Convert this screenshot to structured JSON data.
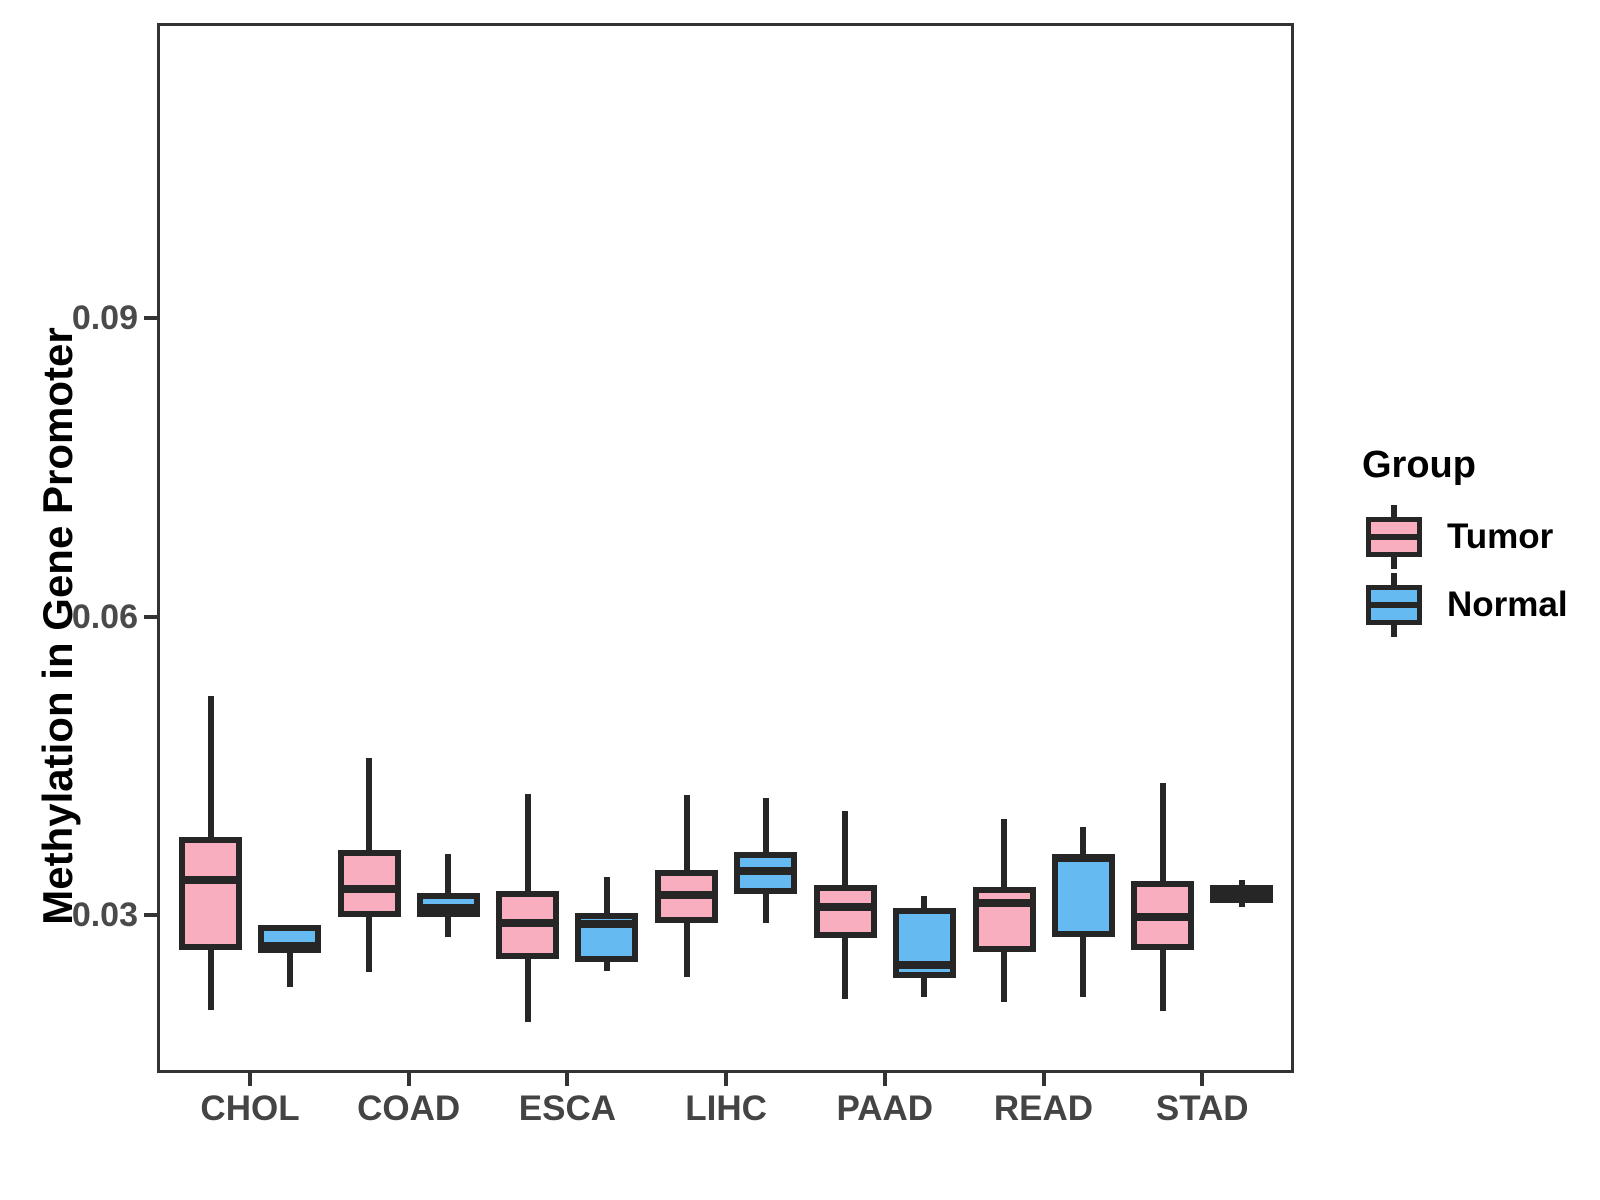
{
  "chart_data": {
    "type": "boxplot",
    "title": "",
    "xlabel": "",
    "ylabel": "Methylation in Gene Promoter",
    "categories": [
      "CHOL",
      "COAD",
      "ESCA",
      "LIHC",
      "PAAD",
      "READ",
      "STAD"
    ],
    "yticks": [
      0.03,
      0.06,
      0.09
    ],
    "ytick_labels": [
      "0.03",
      "0.06",
      "0.09"
    ],
    "ylim": [
      0.014,
      0.119
    ],
    "grid": "off",
    "legend": {
      "title": "Group",
      "position": "right",
      "entries": [
        {
          "label": "Tumor",
          "color": "#F9AEC0"
        },
        {
          "label": "Normal",
          "color": "#66BAF2"
        }
      ]
    },
    "colors": {
      "tumor_fill": "#F9AEC0",
      "normal_fill": "#66BAF2",
      "stroke": "#262626",
      "panel_border": "#333333",
      "tick_label": "#4a4a4a",
      "axis_title": "#000000"
    },
    "series": [
      {
        "name": "Tumor",
        "color": "#F9AEC0",
        "boxes": [
          {
            "category": "CHOL",
            "whisker_low": 0.0205,
            "q1": 0.0265,
            "median": 0.0335,
            "q3": 0.0378,
            "whisker_high": 0.052
          },
          {
            "category": "COAD",
            "whisker_low": 0.0243,
            "q1": 0.0298,
            "median": 0.0326,
            "q3": 0.0365,
            "whisker_high": 0.0458
          },
          {
            "category": "ESCA",
            "whisker_low": 0.0192,
            "q1": 0.0256,
            "median": 0.0292,
            "q3": 0.0324,
            "whisker_high": 0.0422
          },
          {
            "category": "LIHC",
            "whisker_low": 0.0238,
            "q1": 0.0292,
            "median": 0.032,
            "q3": 0.0345,
            "whisker_high": 0.0421
          },
          {
            "category": "PAAD",
            "whisker_low": 0.0216,
            "q1": 0.0277,
            "median": 0.0308,
            "q3": 0.033,
            "whisker_high": 0.0405
          },
          {
            "category": "READ",
            "whisker_low": 0.0213,
            "q1": 0.0263,
            "median": 0.0312,
            "q3": 0.0328,
            "whisker_high": 0.0396
          },
          {
            "category": "STAD",
            "whisker_low": 0.0204,
            "q1": 0.0265,
            "median": 0.0298,
            "q3": 0.0334,
            "whisker_high": 0.0433
          }
        ]
      },
      {
        "name": "Normal",
        "color": "#66BAF2",
        "boxes": [
          {
            "category": "CHOL",
            "whisker_low": 0.0228,
            "q1": 0.0262,
            "median": 0.0269,
            "q3": 0.029,
            "whisker_high": 0.029
          },
          {
            "category": "COAD",
            "whisker_low": 0.0278,
            "q1": 0.0298,
            "median": 0.0307,
            "q3": 0.0322,
            "whisker_high": 0.0361
          },
          {
            "category": "ESCA",
            "whisker_low": 0.0244,
            "q1": 0.0253,
            "median": 0.0291,
            "q3": 0.0302,
            "whisker_high": 0.0338
          },
          {
            "category": "LIHC",
            "whisker_low": 0.0292,
            "q1": 0.0321,
            "median": 0.0344,
            "q3": 0.0363,
            "whisker_high": 0.0418
          },
          {
            "category": "PAAD",
            "whisker_low": 0.0218,
            "q1": 0.0237,
            "median": 0.025,
            "q3": 0.0307,
            "whisker_high": 0.0319
          },
          {
            "category": "READ",
            "whisker_low": 0.0218,
            "q1": 0.0278,
            "median": 0.0357,
            "q3": 0.0361,
            "whisker_high": 0.0388
          },
          {
            "category": "STAD",
            "whisker_low": 0.0308,
            "q1": 0.0312,
            "median": 0.032,
            "q3": 0.033,
            "whisker_high": 0.0335
          }
        ]
      }
    ]
  }
}
